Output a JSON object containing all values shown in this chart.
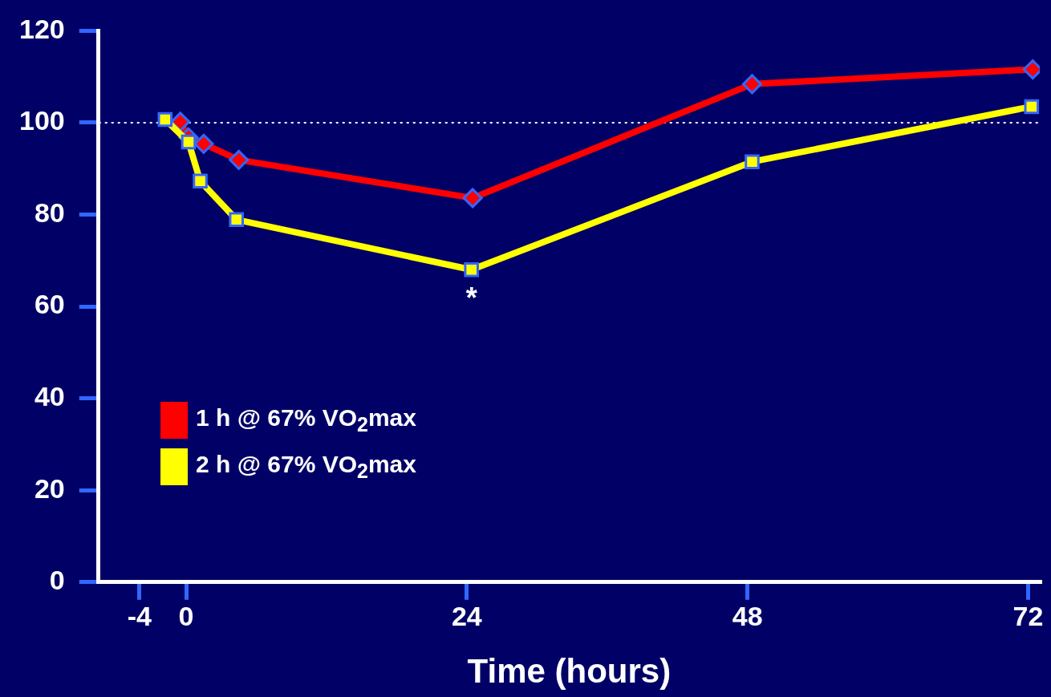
{
  "chart_data": {
    "type": "line",
    "xlabel": "Time (hours)",
    "xlim": [
      -7.5,
      73
    ],
    "xticks": [
      -4,
      0,
      24,
      48,
      72
    ],
    "ylim": [
      0,
      120
    ],
    "yticks": [
      0,
      20,
      40,
      60,
      80,
      100,
      120
    ],
    "grid": false,
    "legend": "left",
    "line_style": "solid",
    "series": [
      {
        "name": "1 h @ 67% VO$_{2}$max",
        "color": "#ff0000",
        "marker": "diamond",
        "x": [
          -0.5,
          0.2,
          1.5,
          4.5,
          24.5,
          48.4,
          72.4
        ],
        "values": [
          100.2,
          96.8,
          95.4,
          91.9,
          83.6,
          108.4,
          111.6
        ]
      },
      {
        "name": "2 h @ 67% VO$_{2}$max",
        "color": "#ffff00",
        "marker": "square",
        "x": [
          -1.8,
          0.2,
          1.2,
          4.3,
          24.4,
          48.4,
          72.3
        ],
        "values": [
          100.7,
          95.8,
          87.3,
          78.9,
          68,
          91.5,
          103.5
        ]
      }
    ],
    "ref_lines": [
      {
        "axis": "y",
        "value": 100,
        "color": "#ffffff",
        "line_style": "dotted"
      }
    ],
    "annotations": [
      {
        "text": "*",
        "x": 24.4,
        "y": 68
      }
    ]
  }
}
